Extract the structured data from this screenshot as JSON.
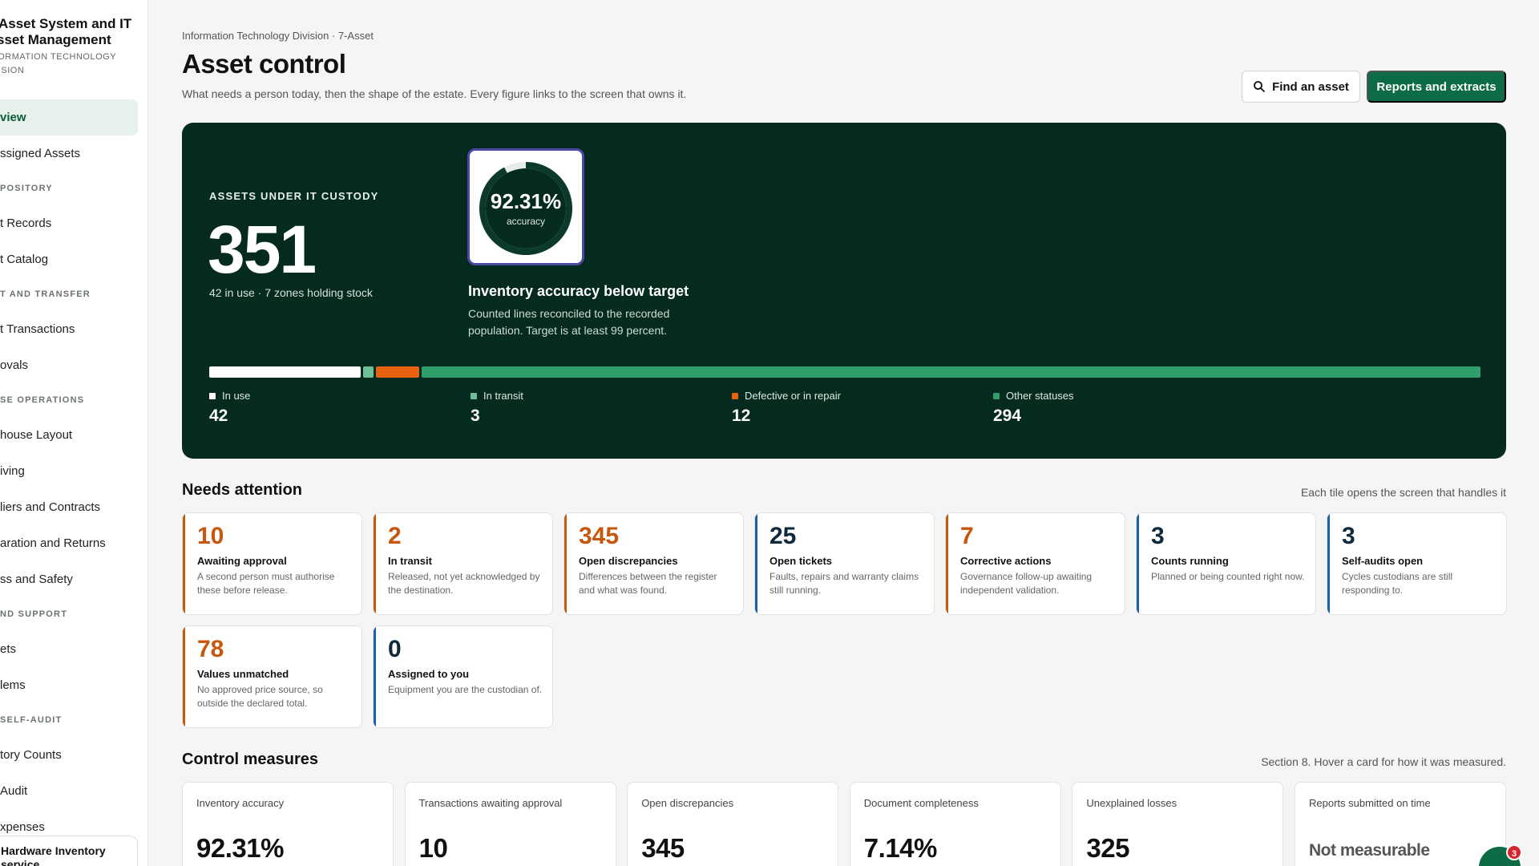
{
  "sidebar": {
    "brand_title_line1": "Asset System and IT",
    "brand_title_line2": "sset Management",
    "brand_sub_line1": "FORMATION TECHNOLOGY",
    "brand_sub_line2": "VISION",
    "items": [
      {
        "type": "item",
        "label": "view",
        "active": true
      },
      {
        "type": "item",
        "label": "ssigned Assets"
      },
      {
        "type": "section",
        "label": "POSITORY"
      },
      {
        "type": "item",
        "label": "t Records"
      },
      {
        "type": "item",
        "label": "t Catalog"
      },
      {
        "type": "section",
        "label": "T AND TRANSFER"
      },
      {
        "type": "item",
        "label": "t Transactions"
      },
      {
        "type": "item",
        "label": "ovals"
      },
      {
        "type": "section",
        "label": "SE OPERATIONS"
      },
      {
        "type": "item",
        "label": "house Layout"
      },
      {
        "type": "item",
        "label": "iving"
      },
      {
        "type": "item",
        "label": "liers and Contracts"
      },
      {
        "type": "item",
        "label": "aration and Returns"
      },
      {
        "type": "item",
        "label": "ss and Safety"
      },
      {
        "type": "section",
        "label": "ND SUPPORT"
      },
      {
        "type": "item",
        "label": "ets"
      },
      {
        "type": "item",
        "label": "lems"
      },
      {
        "type": "section",
        "label": "SELF-AUDIT"
      },
      {
        "type": "item",
        "label": "tory Counts"
      },
      {
        "type": "item",
        "label": "Audit"
      },
      {
        "type": "item",
        "label": "xpenses"
      }
    ],
    "bottom_line1": "Hardware Inventory",
    "bottom_line2": "service"
  },
  "header": {
    "breadcrumb": "Information Technology Division · 7-Asset",
    "title": "Asset control",
    "subtitle": "What needs a person today, then the shape of the estate. Every figure links to the screen that owns it.",
    "find_label": "Find an asset",
    "reports_label": "Reports and extracts"
  },
  "hero": {
    "label": "ASSETS UNDER IT CUSTODY",
    "total": "351",
    "meta": "42 in use · 7 zones holding stock",
    "gauge_value": "92.31%",
    "gauge_fraction": 0.9231,
    "gauge_caption": "accuracy",
    "accuracy_title": "Inventory accuracy below target",
    "accuracy_desc": "Counted lines reconciled to the recorded population. Target is at least 99 percent.",
    "breakdown": [
      {
        "name": "In use",
        "value": "42",
        "count": 42,
        "color": "#ffffff"
      },
      {
        "name": "In transit",
        "value": "3",
        "count": 3,
        "color": "#6fbf98"
      },
      {
        "name": "Defective or in repair",
        "value": "12",
        "count": 12,
        "color": "#e8620f"
      },
      {
        "name": "Other statuses",
        "value": "294",
        "count": 294,
        "color": "#2f9e6a"
      }
    ]
  },
  "attention": {
    "title": "Needs attention",
    "note": "Each tile opens the screen that handles it",
    "tiles": [
      {
        "num": "10",
        "title": "Awaiting approval",
        "desc": "A second person must authorise these before release.",
        "tone": "orange"
      },
      {
        "num": "2",
        "title": "In transit",
        "desc": "Released, not yet acknowledged by the destination.",
        "tone": "orange"
      },
      {
        "num": "345",
        "title": "Open discrepancies",
        "desc": "Differences between the register and what was found.",
        "tone": "orange"
      },
      {
        "num": "25",
        "title": "Open tickets",
        "desc": "Faults, repairs and warranty claims still running.",
        "tone": "blue"
      },
      {
        "num": "7",
        "title": "Corrective actions",
        "desc": "Governance follow-up awaiting independent validation.",
        "tone": "orange"
      },
      {
        "num": "3",
        "title": "Counts running",
        "desc": "Planned or being counted right now.",
        "tone": "blue"
      },
      {
        "num": "3",
        "title": "Self-audits open",
        "desc": "Cycles custodians are still responding to.",
        "tone": "blue"
      },
      {
        "num": "78",
        "title": "Values unmatched",
        "desc": "No approved price source, so outside the declared total.",
        "tone": "orange"
      },
      {
        "num": "0",
        "title": "Assigned to you",
        "desc": "Equipment you are the custodian of.",
        "tone": "blue"
      }
    ]
  },
  "measures": {
    "title": "Control measures",
    "note": "Section 8. Hover a card for how it was measured.",
    "cards": [
      {
        "label": "Inventory accuracy",
        "value": "92.31%"
      },
      {
        "label": "Transactions awaiting approval",
        "value": "10"
      },
      {
        "label": "Open discrepancies",
        "value": "345"
      },
      {
        "label": "Document completeness",
        "value": "7.14%"
      },
      {
        "label": "Unexplained losses",
        "value": "325"
      },
      {
        "label": "Reports submitted on time",
        "value": "Not measurable",
        "muted": true
      }
    ]
  },
  "chat": {
    "badge": "3"
  },
  "colors": {
    "brand": "#0d6b45",
    "hero_bg": "#052a20",
    "orange": "#c8570e",
    "blue": "#1b5fa6"
  }
}
